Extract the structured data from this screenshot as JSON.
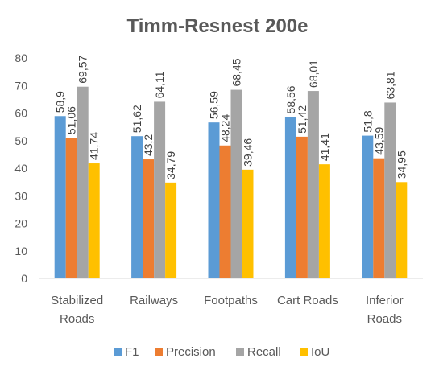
{
  "chart_data": {
    "type": "bar",
    "title": "Timm-Resnest 200e",
    "categories": [
      [
        "Stabilized",
        "Roads"
      ],
      [
        "Railways"
      ],
      [
        "Footpaths"
      ],
      [
        "Cart Roads"
      ],
      [
        "Inferior",
        "Roads"
      ]
    ],
    "series": [
      {
        "name": "F1",
        "color": "#5B9BD5",
        "values": [
          58.9,
          51.62,
          56.59,
          58.56,
          51.8
        ],
        "labels": [
          "58,9",
          "51,62",
          "56,59",
          "58,56",
          "51,8"
        ]
      },
      {
        "name": "Precision",
        "color": "#ED7D31",
        "values": [
          51.06,
          43.2,
          48.24,
          51.42,
          43.59
        ],
        "labels": [
          "51,06",
          "43,2",
          "48,24",
          "51,42",
          "43,59"
        ]
      },
      {
        "name": "Recall",
        "color": "#A5A5A5",
        "values": [
          69.57,
          64.11,
          68.45,
          68.01,
          63.81
        ],
        "labels": [
          "69,57",
          "64,11",
          "68,45",
          "68,01",
          "63,81"
        ]
      },
      {
        "name": "IoU",
        "color": "#FFC000",
        "values": [
          41.74,
          34.79,
          39.46,
          41.41,
          34.95
        ],
        "labels": [
          "41,74",
          "34,79",
          "39,46",
          "41,41",
          "34,95"
        ]
      }
    ],
    "ylim": [
      0,
      80
    ],
    "yticks": [
      0,
      10,
      20,
      30,
      40,
      50,
      60,
      70,
      80
    ],
    "grid": false,
    "legend_position": "bottom"
  }
}
